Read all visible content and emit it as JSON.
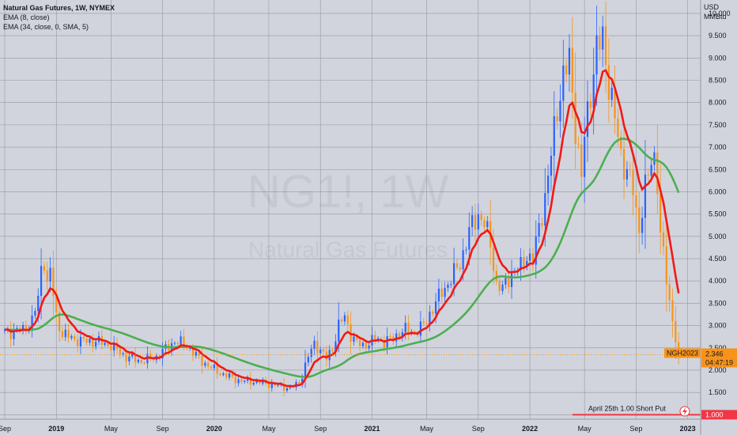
{
  "chart_data": {
    "type": "candlestick",
    "title": "Natural Gas Futures, 1W, NYMEX",
    "indicators": [
      {
        "name": "EMA (8, close)",
        "color": "#f21818"
      },
      {
        "name": "EMA (34, close, 0, SMA, 5)",
        "color": "#4caf50"
      }
    ],
    "unit_top": "USD",
    "unit_bottom": "MMBtu",
    "watermark": {
      "symbol": "NG1!, 1W",
      "name": "Natural Gas Futures"
    },
    "ylim": [
      0.9,
      10.3
    ],
    "y_ticks": [
      "1.000",
      "1.500",
      "2.000",
      "2.500",
      "3.000",
      "3.500",
      "4.000",
      "4.500",
      "5.000",
      "5.500",
      "6.000",
      "6.500",
      "7.000",
      "7.500",
      "8.000",
      "8.500",
      "9.000",
      "9.500",
      "10.000"
    ],
    "x_labels": [
      {
        "label": "Sep",
        "week": 0
      },
      {
        "label": "2019",
        "week": 17
      },
      {
        "label": "May",
        "week": 35
      },
      {
        "label": "Sep",
        "week": 52
      },
      {
        "label": "2020",
        "week": 69
      },
      {
        "label": "May",
        "week": 87
      },
      {
        "label": "Sep",
        "week": 104
      },
      {
        "label": "2021",
        "week": 121
      },
      {
        "label": "May",
        "week": 139
      },
      {
        "label": "Sep",
        "week": 156
      },
      {
        "label": "2022",
        "week": 173
      },
      {
        "label": "May",
        "week": 191
      },
      {
        "label": "Sep",
        "week": 208
      },
      {
        "label": "2023",
        "week": 225
      }
    ],
    "price_path": [
      [
        0,
        2.85
      ],
      [
        6,
        2.9
      ],
      [
        9,
        3.1
      ],
      [
        11,
        3.6
      ],
      [
        12,
        4.3
      ],
      [
        13,
        4.5
      ],
      [
        14,
        3.9
      ],
      [
        15,
        4.2
      ],
      [
        17,
        3.2
      ],
      [
        19,
        2.8
      ],
      [
        21,
        2.75
      ],
      [
        25,
        2.65
      ],
      [
        30,
        2.65
      ],
      [
        35,
        2.55
      ],
      [
        40,
        2.3
      ],
      [
        45,
        2.2
      ],
      [
        50,
        2.3
      ],
      [
        56,
        2.65
      ],
      [
        60,
        2.55
      ],
      [
        64,
        2.25
      ],
      [
        68,
        2.05
      ],
      [
        72,
        1.9
      ],
      [
        78,
        1.75
      ],
      [
        82,
        1.75
      ],
      [
        86,
        1.7
      ],
      [
        90,
        1.65
      ],
      [
        94,
        1.6
      ],
      [
        97,
        1.7
      ],
      [
        100,
        2.3
      ],
      [
        102,
        2.6
      ],
      [
        104,
        2.45
      ],
      [
        106,
        2.25
      ],
      [
        108,
        2.5
      ],
      [
        110,
        3.0
      ],
      [
        112,
        3.2
      ],
      [
        114,
        2.8
      ],
      [
        116,
        2.6
      ],
      [
        118,
        2.55
      ],
      [
        121,
        2.65
      ],
      [
        123,
        2.7
      ],
      [
        125,
        2.65
      ],
      [
        128,
        2.7
      ],
      [
        130,
        2.85
      ],
      [
        132,
        2.9
      ],
      [
        135,
        2.85
      ],
      [
        138,
        3.0
      ],
      [
        141,
        3.4
      ],
      [
        144,
        3.75
      ],
      [
        147,
        4.05
      ],
      [
        150,
        4.4
      ],
      [
        153,
        5.1
      ],
      [
        156,
        5.5
      ],
      [
        158,
        5.3
      ],
      [
        160,
        4.8
      ],
      [
        162,
        3.95
      ],
      [
        164,
        3.8
      ],
      [
        167,
        4.2
      ],
      [
        170,
        4.3
      ],
      [
        172,
        4.6
      ],
      [
        174,
        4.45
      ],
      [
        176,
        5.2
      ],
      [
        178,
        5.9
      ],
      [
        180,
        6.8
      ],
      [
        182,
        7.9
      ],
      [
        184,
        8.6
      ],
      [
        186,
        8.9
      ],
      [
        188,
        7.5
      ],
      [
        190,
        6.3
      ],
      [
        191,
        7.2
      ],
      [
        193,
        8.3
      ],
      [
        195,
        9.2
      ],
      [
        197,
        9.4
      ],
      [
        199,
        8.5
      ],
      [
        201,
        7.6
      ],
      [
        203,
        6.8
      ],
      [
        205,
        6.5
      ],
      [
        207,
        6.0
      ],
      [
        208,
        5.5
      ],
      [
        209,
        5.2
      ],
      [
        211,
        6.1
      ],
      [
        213,
        6.6
      ],
      [
        214,
        6.8
      ],
      [
        215,
        6.3
      ],
      [
        216,
        5.0
      ],
      [
        217,
        4.6
      ],
      [
        218,
        4.0
      ],
      [
        219,
        3.5
      ],
      [
        220,
        3.2
      ],
      [
        221,
        2.7
      ],
      [
        222,
        2.346
      ]
    ],
    "last_week": 222,
    "last_price_label": "NGH2023",
    "last_price": "2.346",
    "countdown": "04:47:19",
    "put_line": {
      "price": "1.000",
      "label": "April 25th 1.00 Short Put",
      "from_week": 187,
      "to_week": 223
    },
    "up_color": "#2962ff",
    "down_color": "#f7931a",
    "grid": true,
    "background": "#d1d4dc"
  }
}
